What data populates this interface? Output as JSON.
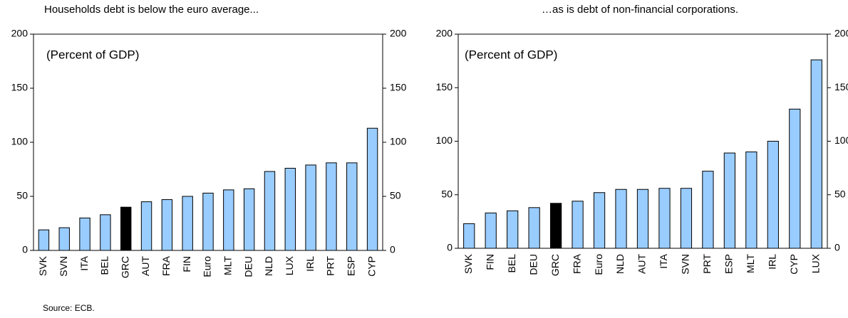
{
  "chart_data": [
    {
      "type": "bar",
      "title": "Households debt is below the euro average...",
      "annotation": "(Percent of GDP)",
      "categories": [
        "SVK",
        "SVN",
        "ITA",
        "BEL",
        "GRC",
        "AUT",
        "FRA",
        "FIN",
        "Euro",
        "MLT",
        "DEU",
        "NLD",
        "LUX",
        "IRL",
        "PRT",
        "ESP",
        "CYP"
      ],
      "values": [
        19,
        21,
        30,
        33,
        40,
        45,
        47,
        50,
        53,
        56,
        57,
        73,
        76,
        79,
        81,
        81,
        113
      ],
      "colors": [
        "#99ccff",
        "#99ccff",
        "#99ccff",
        "#99ccff",
        "#000000",
        "#99ccff",
        "#99ccff",
        "#99ccff",
        "#99ccff",
        "#99ccff",
        "#99ccff",
        "#99ccff",
        "#99ccff",
        "#99ccff",
        "#99ccff",
        "#99ccff",
        "#99ccff"
      ],
      "ylim": [
        0,
        200
      ],
      "yticks": [
        0,
        50,
        100,
        150,
        200
      ],
      "y2lim": [
        0,
        200
      ],
      "y2ticks": [
        0,
        50,
        100,
        150,
        200
      ],
      "grid": false
    },
    {
      "type": "bar",
      "title": "…as is debt of non-financial corporations.",
      "annotation": "(Percent of GDP)",
      "categories": [
        "SVK",
        "FIN",
        "BEL",
        "DEU",
        "GRC",
        "FRA",
        "Euro",
        "NLD",
        "AUT",
        "ITA",
        "SVN",
        "PRT",
        "ESP",
        "MLT",
        "IRL",
        "CYP",
        "LUX"
      ],
      "values": [
        23,
        33,
        35,
        38,
        42,
        44,
        52,
        55,
        55,
        56,
        56,
        72,
        89,
        90,
        100,
        130,
        176
      ],
      "colors": [
        "#99ccff",
        "#99ccff",
        "#99ccff",
        "#99ccff",
        "#000000",
        "#99ccff",
        "#99ccff",
        "#99ccff",
        "#99ccff",
        "#99ccff",
        "#99ccff",
        "#99ccff",
        "#99ccff",
        "#99ccff",
        "#99ccff",
        "#99ccff",
        "#99ccff"
      ],
      "ylim": [
        0,
        200
      ],
      "yticks": [
        0,
        50,
        100,
        150,
        200
      ],
      "y2lim": [
        0,
        200
      ],
      "y2ticks": [
        0,
        50,
        100,
        150,
        200
      ],
      "grid": false
    }
  ],
  "source": "Source: ECB."
}
